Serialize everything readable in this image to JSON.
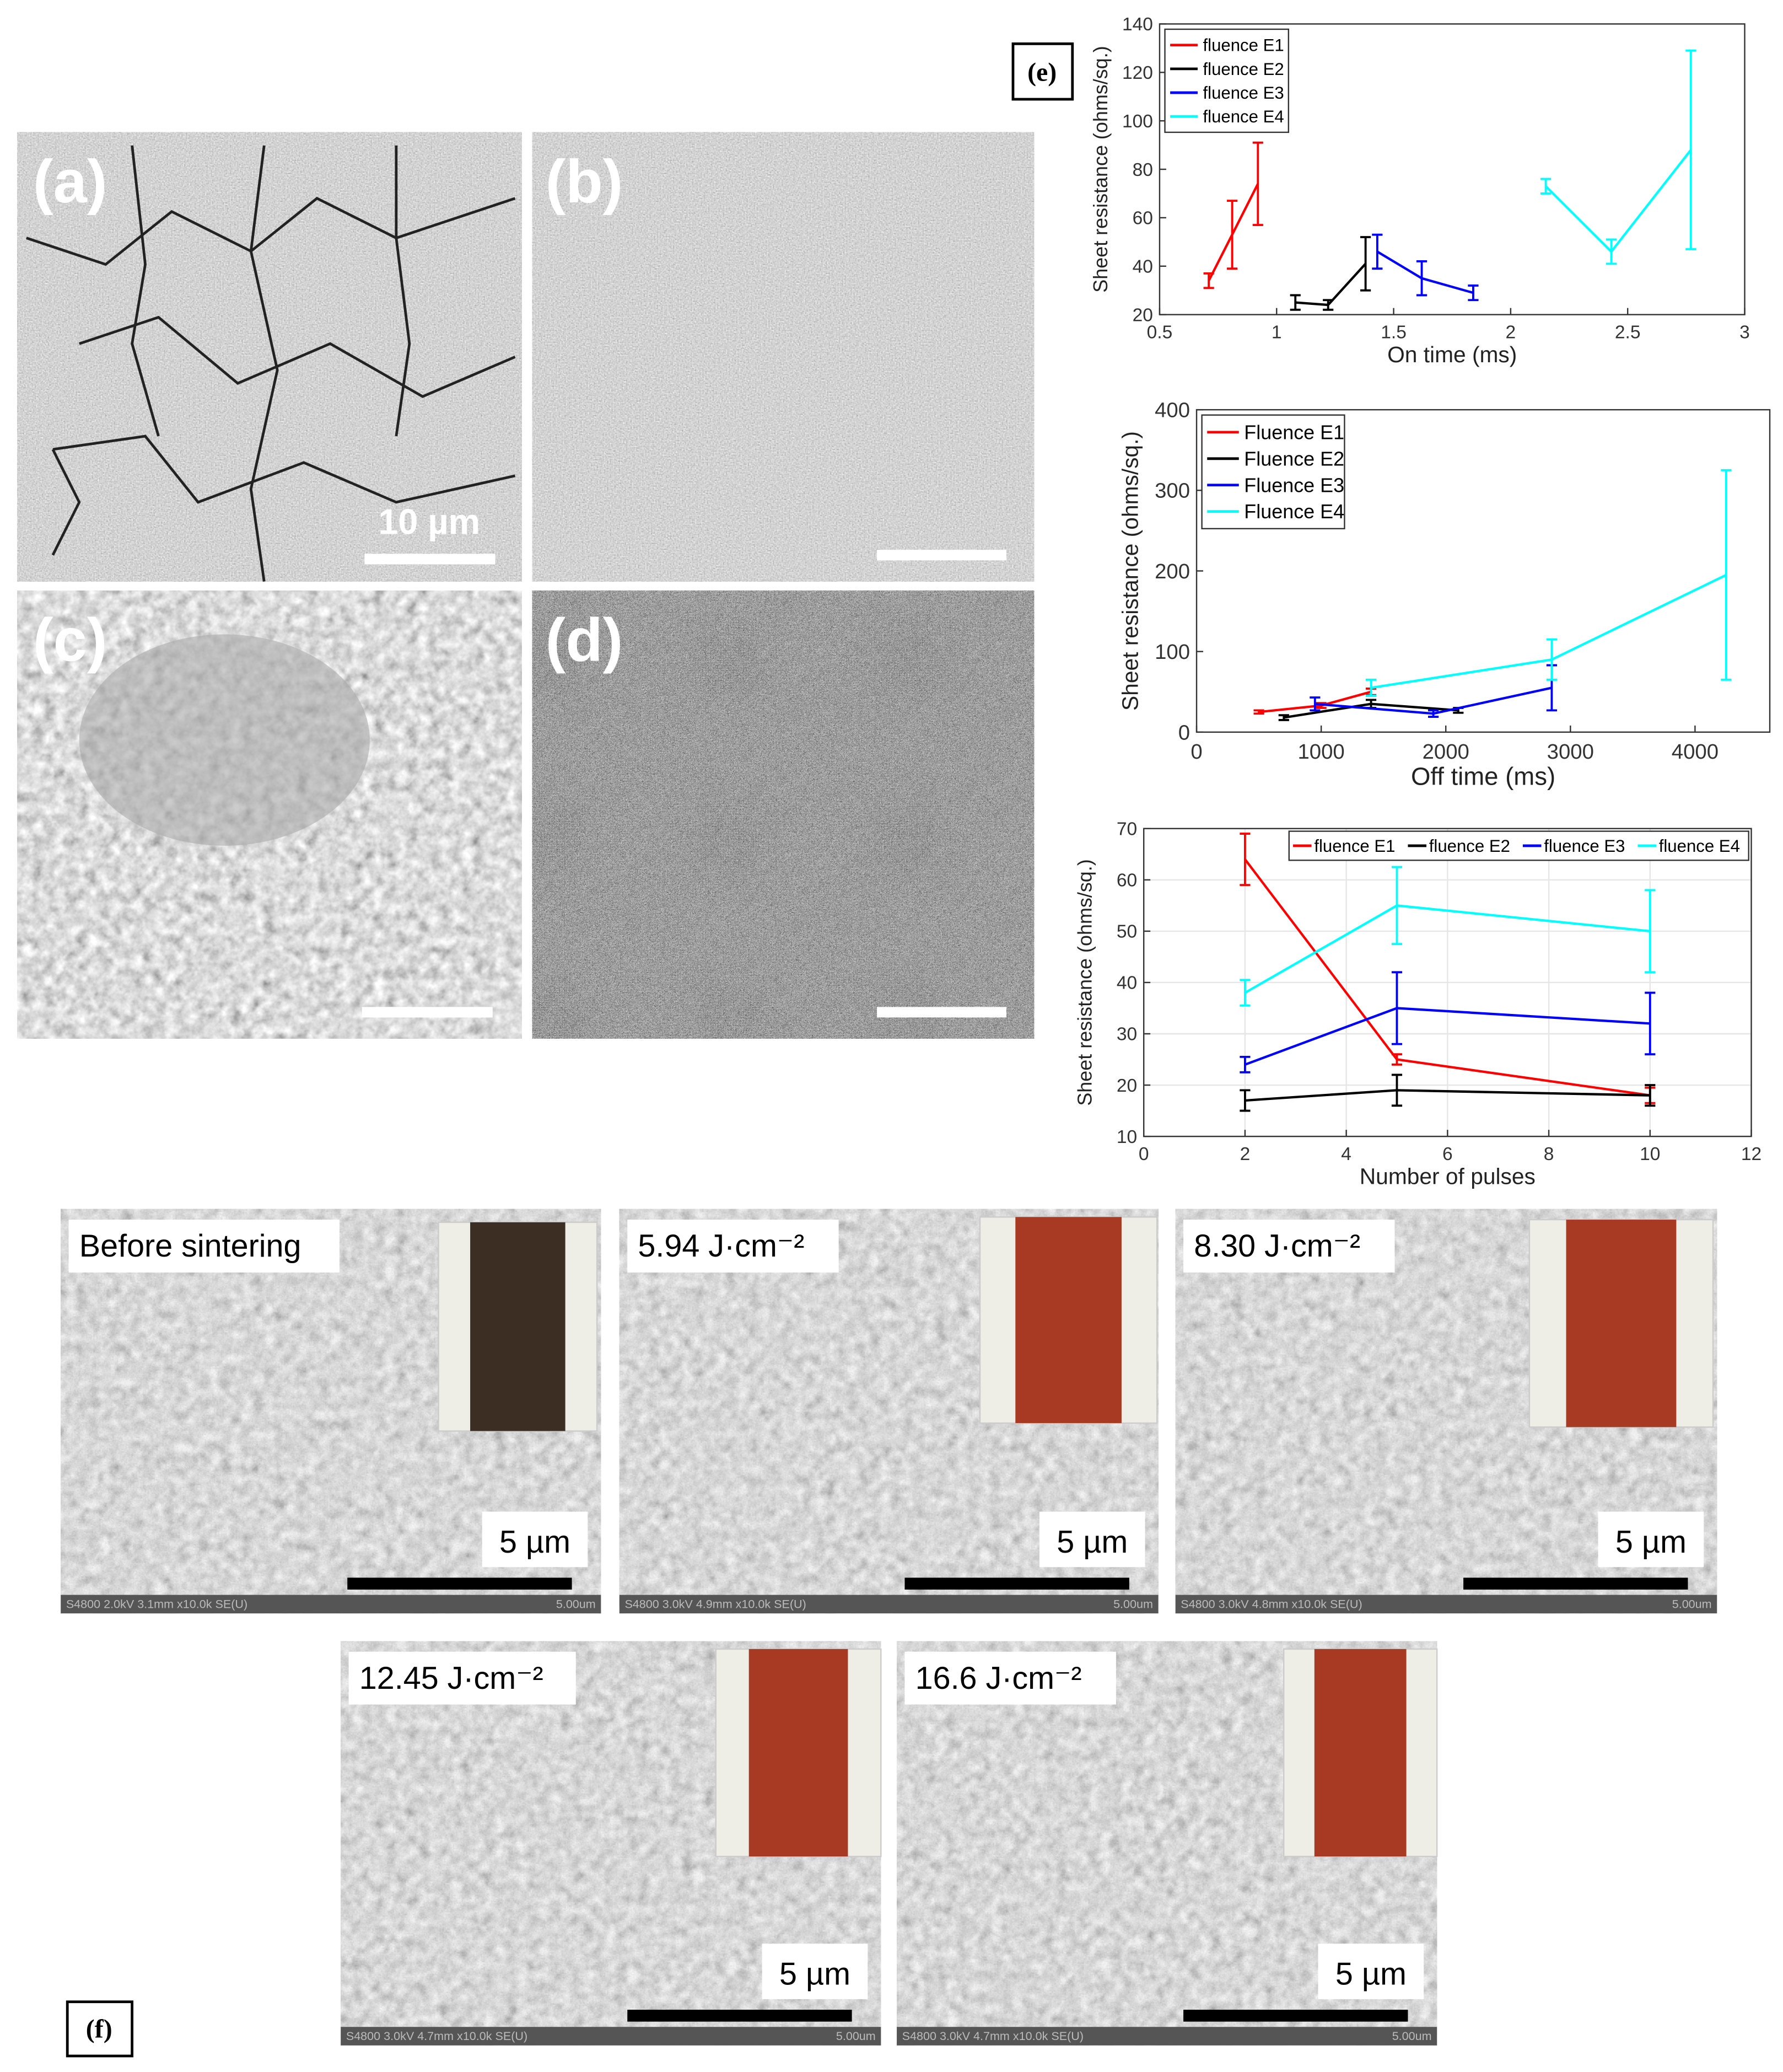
{
  "figure": {
    "sem_labels": [
      "(a)",
      "(b)",
      "(c)",
      "(d)"
    ],
    "sem_scale": "10 µm",
    "panel_e_label": "(e)",
    "panel_f_label": "(f)",
    "sinter_labels": [
      "Before sintering",
      "5.94 J·cm⁻²",
      "8.30 J·cm⁻²",
      "12.45 J·cm⁻²",
      "16.6 J·cm⁻²"
    ],
    "sinter_scale": "5 µm",
    "sinter_footers": [
      "S4800 2.0kV 3.1mm x10.0k SE(U)",
      "S4800 3.0kV 4.9mm x10.0k SE(U)",
      "S4800 3.0kV 4.8mm x10.0k SE(U)",
      "S4800 3.0kV 4.7mm x10.0k SE(U)",
      "S4800 3.0kV 4.7mm x10.0k SE(U)"
    ],
    "sinter_footer_scale": "5.00um"
  },
  "chart_data": [
    {
      "type": "line",
      "xlabel": "On time (ms)",
      "ylabel": "Sheet resistance (ohms/sq.)",
      "xlim": [
        0.5,
        3
      ],
      "xticks": [
        0.5,
        1,
        1.5,
        2,
        2.5,
        3
      ],
      "ylim": [
        20,
        140
      ],
      "yticks": [
        20,
        40,
        60,
        80,
        100,
        120,
        140
      ],
      "legend": "upper left",
      "legend_layout": "vertical",
      "series": [
        {
          "name": "fluence E1",
          "color": "#ff0000",
          "x": [
            0.71,
            0.81,
            0.92
          ],
          "values": [
            34,
            53,
            74
          ],
          "errors": [
            3,
            14,
            17
          ]
        },
        {
          "name": "fluence E2",
          "color": "#000000",
          "x": [
            1.08,
            1.22,
            1.38
          ],
          "values": [
            25,
            24,
            41
          ],
          "errors": [
            3,
            2,
            11
          ]
        },
        {
          "name": "fluence E3",
          "color": "#0000ff",
          "x": [
            1.43,
            1.62,
            1.84
          ],
          "values": [
            46,
            35,
            29
          ],
          "errors": [
            7,
            7,
            3
          ]
        },
        {
          "name": "fluence E4",
          "color": "#00ffff",
          "x": [
            2.15,
            2.43,
            2.77
          ],
          "values": [
            73,
            46,
            88
          ],
          "errors": [
            3,
            5,
            41
          ]
        }
      ]
    },
    {
      "type": "line",
      "xlabel": "Off time (ms)",
      "ylabel": "Sheet resistance (ohms/sq.)",
      "xlim": [
        0,
        4600
      ],
      "xticks": [
        0,
        1000,
        2000,
        3000,
        4000
      ],
      "ylim": [
        0,
        400
      ],
      "yticks": [
        0,
        100,
        200,
        300,
        400
      ],
      "legend": "upper left",
      "legend_layout": "vertical",
      "series": [
        {
          "name": "Fluence E1",
          "color": "#ff0000",
          "x": [
            500,
            1000,
            1400
          ],
          "values": [
            25,
            33,
            50
          ],
          "errors": [
            2,
            3,
            4
          ]
        },
        {
          "name": "Fluence E2",
          "color": "#000000",
          "x": [
            700,
            1400,
            2100
          ],
          "values": [
            18,
            35,
            27
          ],
          "errors": [
            3,
            5,
            3
          ]
        },
        {
          "name": "Fluence E3",
          "color": "#0000ff",
          "x": [
            950,
            1900,
            2850
          ],
          "values": [
            35,
            23,
            55
          ],
          "errors": [
            8,
            4,
            28
          ]
        },
        {
          "name": "Fluence E4",
          "color": "#00ffff",
          "x": [
            1400,
            2850,
            4250
          ],
          "values": [
            55,
            90,
            195
          ],
          "errors": [
            10,
            25,
            130
          ]
        }
      ]
    },
    {
      "type": "line",
      "xlabel": "Number of pulses",
      "ylabel": "Sheet resistance (ohms/sq.)",
      "xlim": [
        0,
        12
      ],
      "xticks": [
        0,
        2,
        4,
        6,
        8,
        10,
        12
      ],
      "ylim": [
        10,
        70
      ],
      "yticks": [
        10,
        20,
        30,
        40,
        50,
        60,
        70
      ],
      "legend": "upper right",
      "legend_layout": "horizontal",
      "grid": true,
      "series": [
        {
          "name": "fluence E1",
          "color": "#ff0000",
          "x": [
            2,
            5,
            10
          ],
          "values": [
            64,
            25,
            18
          ],
          "errors": [
            5,
            1,
            1.5
          ]
        },
        {
          "name": "fluence E2",
          "color": "#000000",
          "x": [
            2,
            5,
            10
          ],
          "values": [
            17,
            19,
            18
          ],
          "errors": [
            2,
            3,
            2
          ]
        },
        {
          "name": "fluence E3",
          "color": "#0000ff",
          "x": [
            2,
            5,
            10
          ],
          "values": [
            24,
            35,
            32
          ],
          "errors": [
            1.5,
            7,
            6
          ]
        },
        {
          "name": "fluence E4",
          "color": "#00ffff",
          "x": [
            2,
            5,
            10
          ],
          "values": [
            38,
            55,
            50
          ],
          "errors": [
            2.5,
            7.5,
            8
          ]
        }
      ]
    }
  ]
}
